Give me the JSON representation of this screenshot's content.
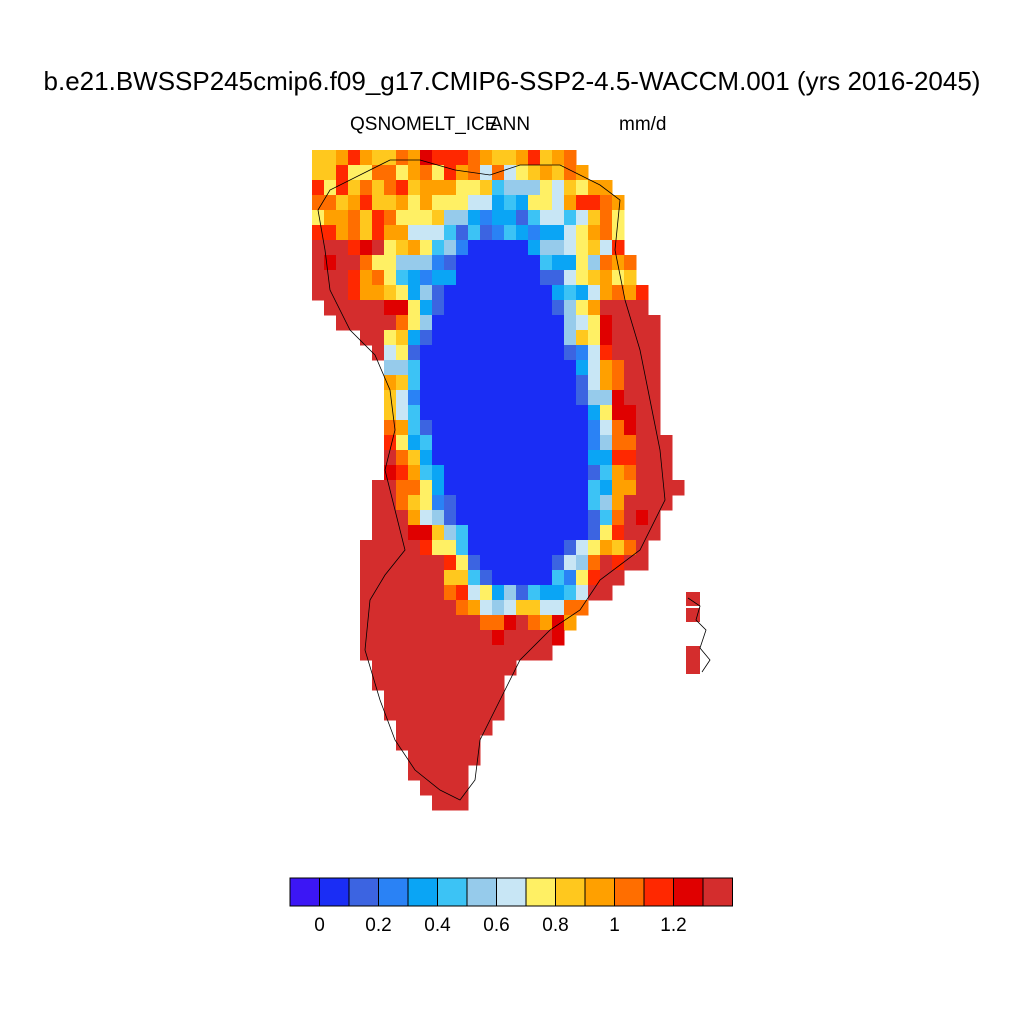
{
  "header": {
    "title": "b.e21.BWSSP245cmip6.f09_g17.CMIP6-SSP2-4.5-WACCM.001 (yrs 2016-2045)",
    "variable": "QSNOMELT_ICE",
    "statistic": "ANN",
    "units": "mm/d"
  },
  "map": {
    "region": "Greenland",
    "field_pattern": "low melt (dark blue) over interior ice sheet, increasing through light blue and yellow bands at the margins to high melt (red) along the coast, strongest in the south and west"
  },
  "colorbar": {
    "colors": [
      "#3c16f5",
      "#1a2df5",
      "#3c64e1",
      "#2a82f5",
      "#0aa5f5",
      "#3cc3f5",
      "#96cbeb",
      "#c8e6f5",
      "#fff064",
      "#ffc81e",
      "#ffa000",
      "#ff6e00",
      "#ff2800",
      "#e00000",
      "#d42d2d"
    ],
    "tick_labels": [
      "0",
      "0.2",
      "0.4",
      "0.6",
      "0.8",
      "1",
      "1.2"
    ]
  }
}
